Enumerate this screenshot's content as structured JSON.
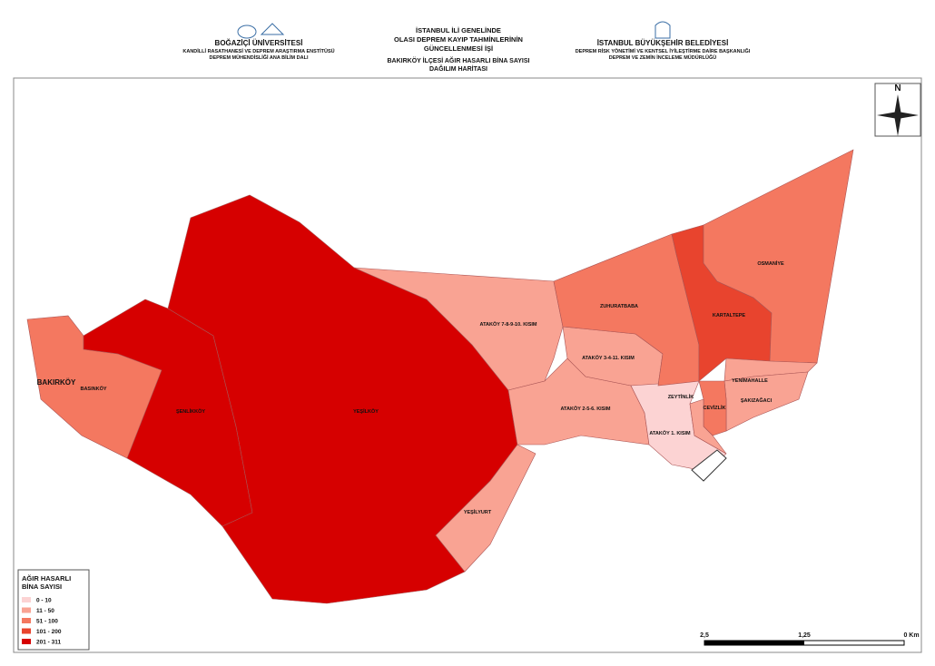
{
  "header": {
    "left": {
      "title": "BOĞAZİÇİ ÜNİVERSİTESİ",
      "lines": [
        "KANDİLLİ RASATHANESİ VE DEPREM ARAŞTIRMA ENSTİTÜSÜ",
        "DEPREM MÜHENDİSLİĞİ ANA BİLİM DALI"
      ]
    },
    "center": {
      "title": [
        "İSTANBUL İLİ GENELİNDE",
        "OLASI DEPREM KAYIP TAHMİNLERİNİN",
        "GÜNCELLENMESİ İŞİ"
      ],
      "subtitle": [
        "BAKIRKÖY İLÇESİ AĞIR HASARLI BİNA SAYISI",
        "DAĞILIM HARİTASI"
      ]
    },
    "right": {
      "title": "İSTANBUL BÜYÜKŞEHİR BELEDİYESİ",
      "lines": [
        "DEPREM RİSK YÖNETİMİ VE KENTSEL İYİLEŞTİRME DAİRE BAŞKANLIĞI",
        "DEPREM VE ZEMİN İNCELEME MÜDÜRLÜĞÜ"
      ]
    }
  },
  "map": {
    "district_label": "BAKIRKÖY",
    "north": "N",
    "districts": [
      {
        "name": "BASINKÖY",
        "color": "#f47860"
      },
      {
        "name": "ŞENLİKKÖY",
        "color": "#d60000"
      },
      {
        "name": "YEŞİLKÖY",
        "color": "#d60000"
      },
      {
        "name": "YEŞİLYURT",
        "color": "#f9a393"
      },
      {
        "name": "ATAKÖY 7-8-9-10. KISIM",
        "color": "#f9a393"
      },
      {
        "name": "ATAKÖY 2-5-6. KISIM",
        "color": "#f9a393"
      },
      {
        "name": "ATAKÖY 3-4-11. KISIM",
        "color": "#f9a393"
      },
      {
        "name": "ATAKÖY 1. KISIM",
        "color": "#fcd3d3"
      },
      {
        "name": "ZUHURATBABA",
        "color": "#f47860"
      },
      {
        "name": "KARTALTEPE",
        "color": "#e8442e"
      },
      {
        "name": "OSMANİYE",
        "color": "#f47860"
      },
      {
        "name": "YENİMAHALLE",
        "color": "#f9a393"
      },
      {
        "name": "ŞAKIZAĞACI",
        "color": "#f9a393"
      },
      {
        "name": "CEVİZLİK",
        "color": "#f47860"
      },
      {
        "name": "ZEYTİNLİK",
        "color": "#f9a393"
      }
    ]
  },
  "legend": {
    "title": [
      "AĞIR HASARLI",
      "BİNA SAYISI"
    ],
    "classes": [
      {
        "label": "0 - 10",
        "color": "#fcd3d3"
      },
      {
        "label": "11 - 50",
        "color": "#f9a393"
      },
      {
        "label": "51 - 100",
        "color": "#f47860"
      },
      {
        "label": "101 - 200",
        "color": "#e8442e"
      },
      {
        "label": "201 - 311",
        "color": "#d60000"
      }
    ]
  },
  "scale": {
    "labels": [
      "2,5",
      "1,25",
      "0 Km"
    ]
  }
}
